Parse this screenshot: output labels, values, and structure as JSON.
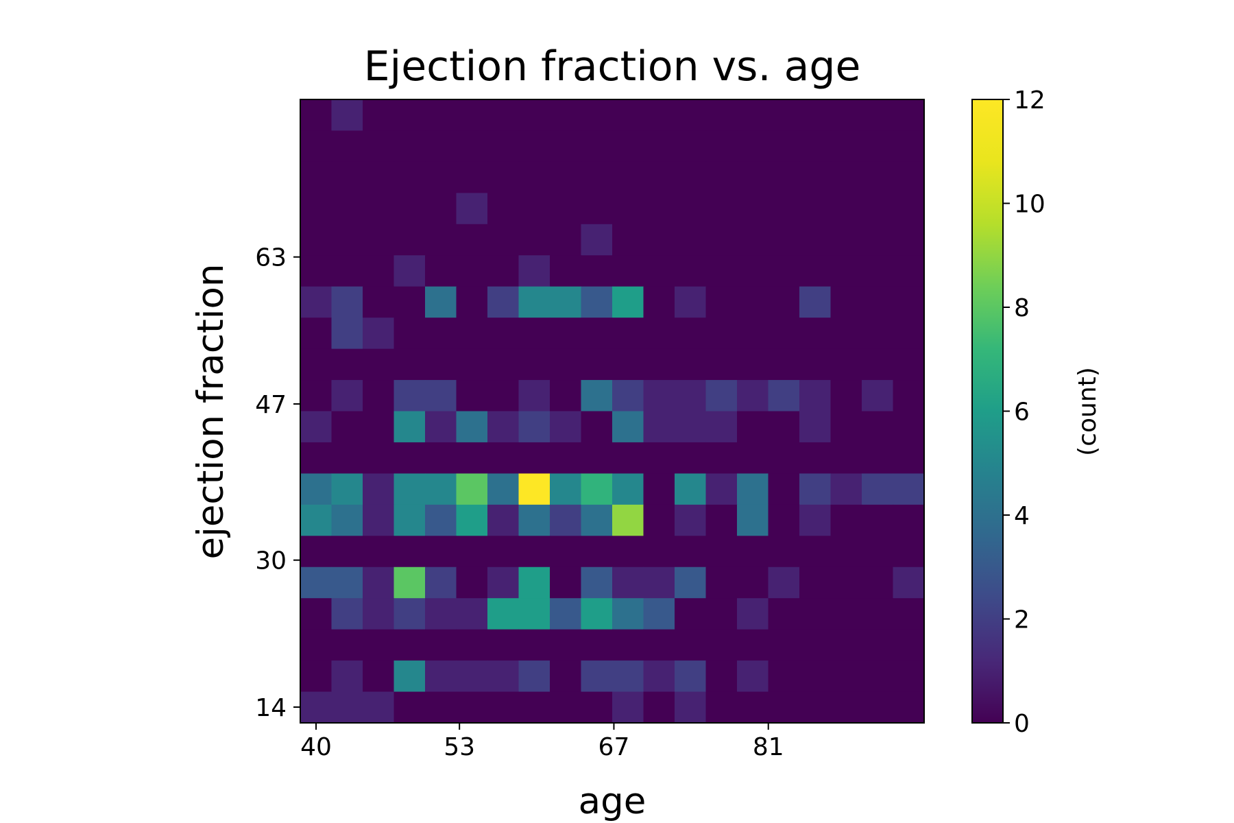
{
  "chart_data": {
    "type": "heatmap",
    "title": "Ejection fraction vs. age",
    "xlabel": "age",
    "ylabel": "ejection fraction",
    "colorbar_label": "(count)",
    "colormap": "viridis",
    "xlim": [
      40,
      95
    ],
    "ylim": [
      14,
      80
    ],
    "vmin": 0,
    "vmax": 12,
    "x_ticks": [
      40,
      53,
      67,
      81
    ],
    "y_ticks": [
      14,
      30,
      47,
      63
    ],
    "colorbar_ticks": [
      0,
      2,
      4,
      6,
      8,
      10,
      12
    ],
    "n_xbins": 20,
    "n_ybins": 20,
    "counts_rows_top_to_bottom": [
      [
        0,
        1,
        0,
        0,
        0,
        0,
        0,
        0,
        0,
        0,
        0,
        0,
        0,
        0,
        0,
        0,
        0,
        0,
        0,
        0
      ],
      [
        0,
        0,
        0,
        0,
        0,
        0,
        0,
        0,
        0,
        0,
        0,
        0,
        0,
        0,
        0,
        0,
        0,
        0,
        0,
        0
      ],
      [
        0,
        0,
        0,
        0,
        0,
        0,
        0,
        0,
        0,
        0,
        0,
        0,
        0,
        0,
        0,
        0,
        0,
        0,
        0,
        0
      ],
      [
        0,
        0,
        0,
        0,
        0,
        1,
        0,
        0,
        0,
        0,
        0,
        0,
        0,
        0,
        0,
        0,
        0,
        0,
        0,
        0
      ],
      [
        0,
        0,
        0,
        0,
        0,
        0,
        0,
        0,
        0,
        1,
        0,
        0,
        0,
        0,
        0,
        0,
        0,
        0,
        0,
        0
      ],
      [
        0,
        0,
        0,
        1,
        0,
        0,
        0,
        1,
        0,
        0,
        0,
        0,
        0,
        0,
        0,
        0,
        0,
        0,
        0,
        0
      ],
      [
        1,
        2,
        0,
        0,
        4,
        0,
        2,
        5,
        5,
        3,
        6,
        0,
        1,
        0,
        0,
        0,
        2,
        0,
        0,
        0
      ],
      [
        0,
        2,
        1,
        0,
        0,
        0,
        0,
        0,
        0,
        0,
        0,
        0,
        0,
        0,
        0,
        0,
        0,
        0,
        0,
        0
      ],
      [
        0,
        0,
        0,
        0,
        0,
        0,
        0,
        0,
        0,
        0,
        0,
        0,
        0,
        0,
        0,
        0,
        0,
        0,
        0,
        0
      ],
      [
        0,
        1,
        0,
        2,
        2,
        0,
        0,
        1,
        0,
        4,
        2,
        1,
        1,
        2,
        1,
        2,
        1,
        0,
        1,
        0
      ],
      [
        1,
        0,
        0,
        5,
        1,
        4,
        1,
        2,
        1,
        0,
        4,
        1,
        1,
        1,
        0,
        0,
        1,
        0,
        0,
        0
      ],
      [
        0,
        0,
        0,
        0,
        0,
        0,
        0,
        0,
        0,
        0,
        0,
        0,
        0,
        0,
        0,
        0,
        0,
        0,
        0,
        0
      ],
      [
        4,
        5,
        1,
        5,
        5,
        8,
        4,
        12,
        5,
        7,
        5,
        0,
        5,
        1,
        4,
        0,
        2,
        1,
        2,
        2
      ],
      [
        5,
        4,
        1,
        5,
        3,
        6,
        1,
        4,
        2,
        4,
        9,
        0,
        1,
        0,
        4,
        0,
        1,
        0,
        0,
        0
      ],
      [
        0,
        0,
        0,
        0,
        0,
        0,
        0,
        0,
        0,
        0,
        0,
        0,
        0,
        0,
        0,
        0,
        0,
        0,
        0,
        0
      ],
      [
        3,
        3,
        1,
        8,
        2,
        0,
        1,
        6,
        0,
        3,
        1,
        1,
        3,
        0,
        0,
        1,
        0,
        0,
        0,
        1
      ],
      [
        0,
        2,
        1,
        2,
        1,
        1,
        6,
        6,
        3,
        6,
        4,
        3,
        0,
        0,
        1,
        0,
        0,
        0,
        0,
        0
      ],
      [
        0,
        0,
        0,
        0,
        0,
        0,
        0,
        0,
        0,
        0,
        0,
        0,
        0,
        0,
        0,
        0,
        0,
        0,
        0,
        0
      ],
      [
        0,
        1,
        0,
        5,
        1,
        1,
        1,
        2,
        0,
        2,
        2,
        1,
        2,
        0,
        1,
        0,
        0,
        0,
        0,
        0
      ],
      [
        1,
        1,
        1,
        0,
        0,
        0,
        0,
        0,
        0,
        0,
        1,
        0,
        1,
        0,
        0,
        0,
        0,
        0,
        0,
        0
      ]
    ]
  }
}
